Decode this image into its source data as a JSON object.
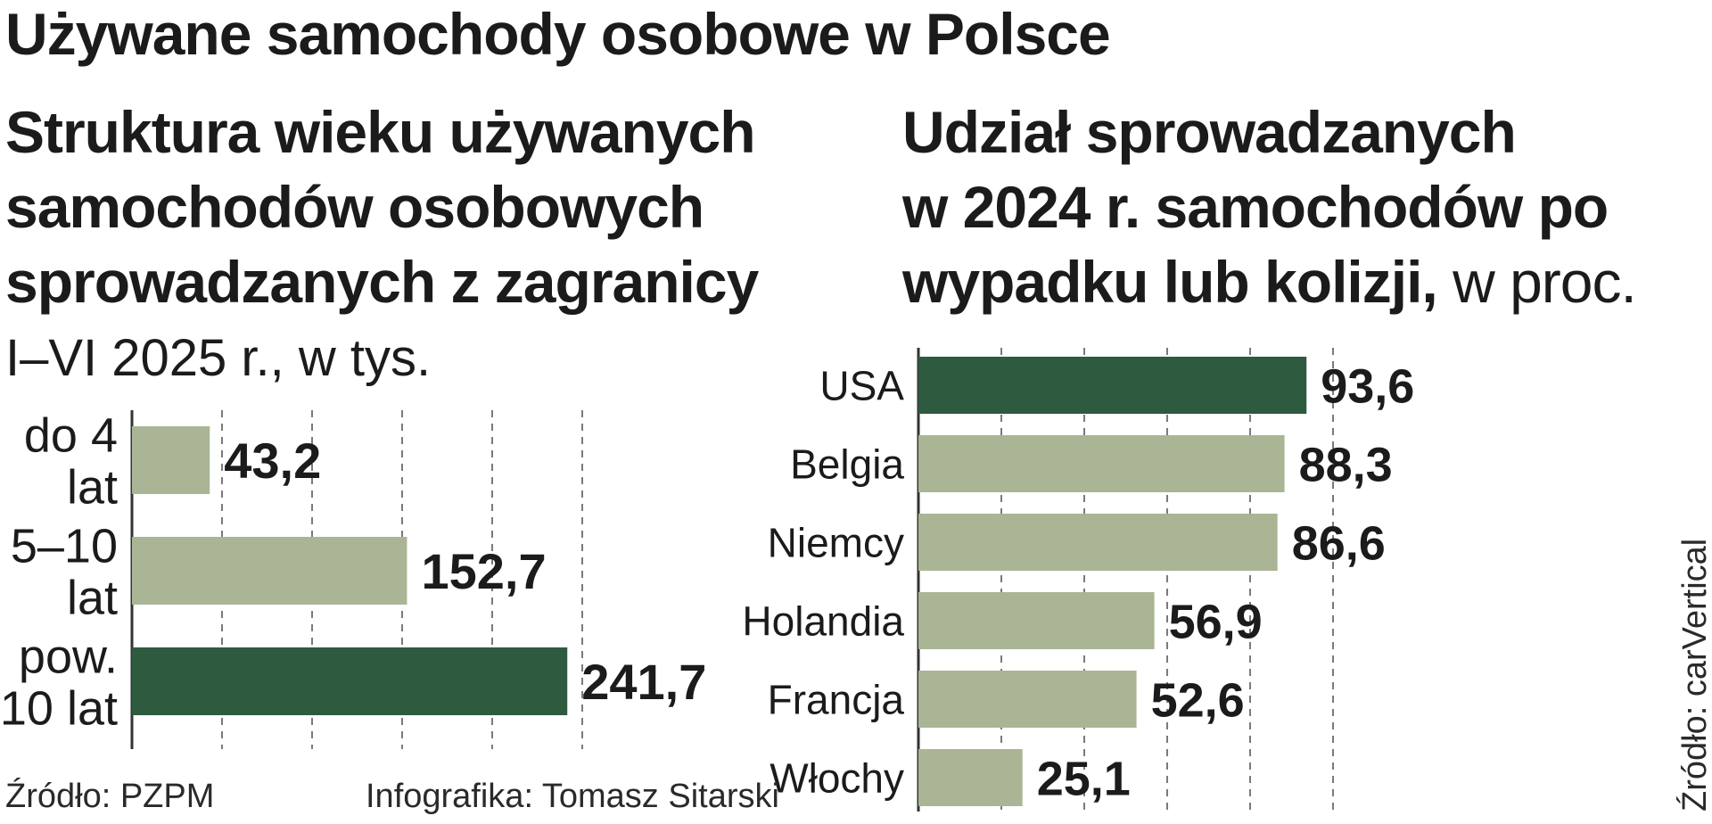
{
  "main_title": "Używane samochody osobowe w Polsce",
  "left_panel": {
    "title_lines": [
      "Struktura wieku używanych",
      "samochodów osobowych",
      "sprowadzanych z zagranicy"
    ],
    "subtitle": "I–VI 2025 r., w tys.",
    "source": "Źródło: PZPM",
    "credit": "Infografika: Tomasz Sitarski"
  },
  "right_panel": {
    "title_lines": [
      "Udział sprowadzanych",
      "w 2024 r. samochodów po",
      "wypadku lub kolizji,"
    ],
    "title_unit": " w proc.",
    "source": "Źródło: carVertical"
  },
  "colors": {
    "highlight": "#2e5a40",
    "bar": "#a9b594",
    "text": "#1b1b1b",
    "grid": "#7a7a7a"
  },
  "chart_data": [
    {
      "type": "bar",
      "orientation": "horizontal",
      "categories": [
        [
          "do 4",
          "lat"
        ],
        [
          "5–10",
          "lat"
        ],
        [
          "pow.",
          "10 lat"
        ]
      ],
      "values": [
        43.2,
        152.7,
        241.7
      ],
      "value_labels": [
        "43,2",
        "152,7",
        "241,7"
      ],
      "highlight_index": 2,
      "xlim": [
        0,
        250
      ],
      "grid": "dashed vertical"
    },
    {
      "type": "bar",
      "orientation": "horizontal",
      "categories": [
        "USA",
        "Belgia",
        "Niemcy",
        "Holandia",
        "Francja",
        "Włochy"
      ],
      "values": [
        93.6,
        88.3,
        86.6,
        56.9,
        52.6,
        25.1
      ],
      "value_labels": [
        "93,6",
        "88,3",
        "86,6",
        "56,9",
        "52,6",
        "25,1"
      ],
      "highlight_index": 0,
      "xlim": [
        0,
        100
      ],
      "grid": "dashed vertical"
    }
  ]
}
